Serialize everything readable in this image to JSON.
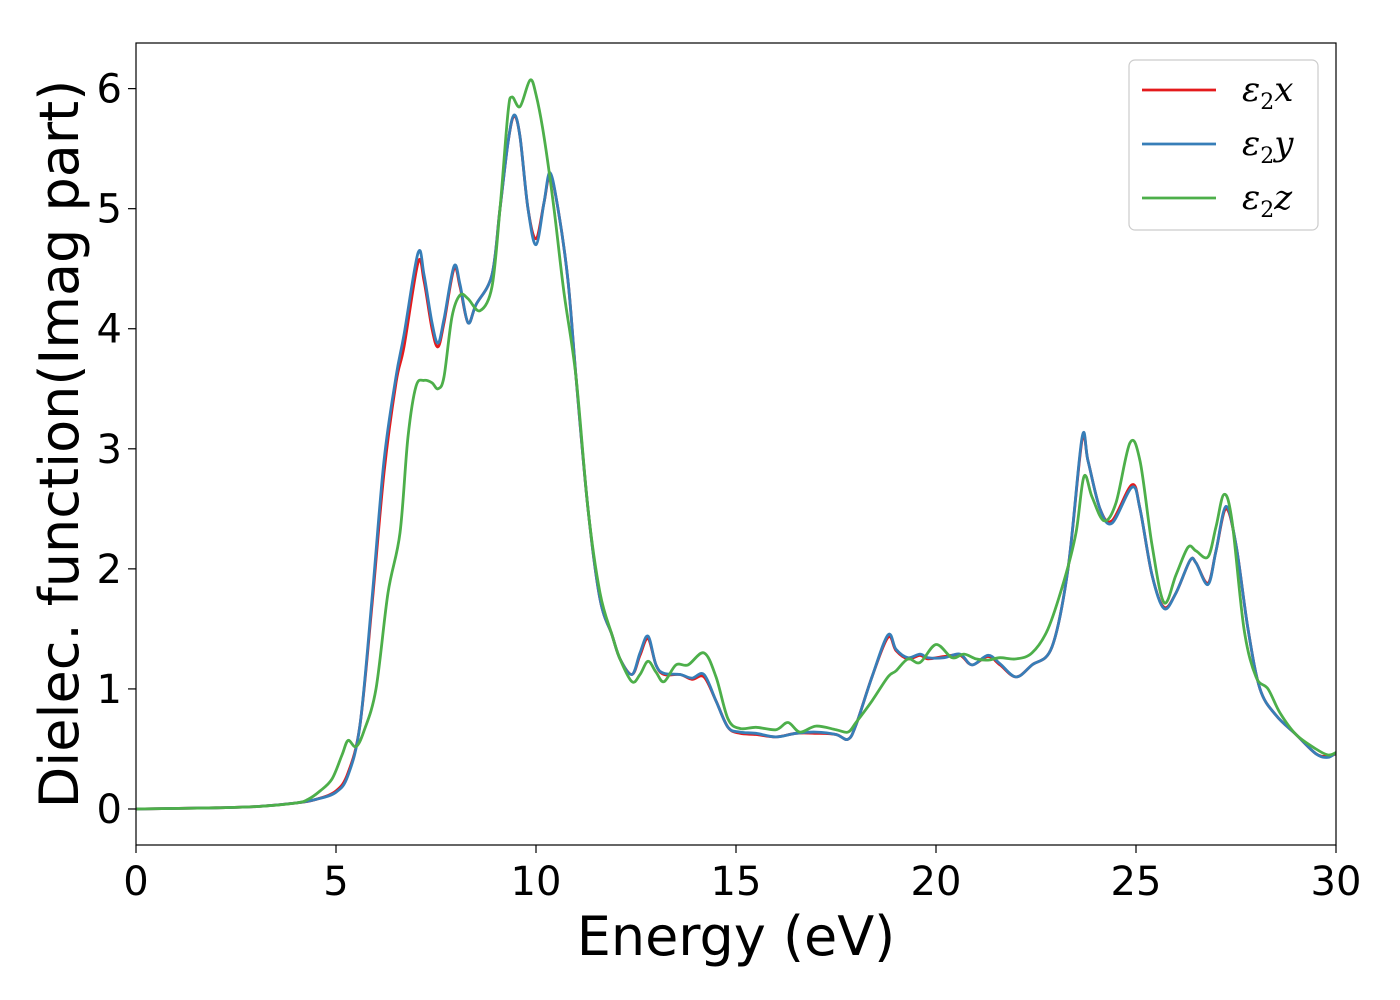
{
  "chart_data": {
    "type": "line",
    "xlabel": "Energy (eV)",
    "ylabel": "Dielec. function(Imag part)",
    "xlim": [
      0,
      30
    ],
    "ylim": [
      -0.3,
      6.38
    ],
    "xticks": [
      "0",
      "5",
      "10",
      "15",
      "20",
      "25",
      "30"
    ],
    "yticks": [
      "0",
      "1",
      "2",
      "3",
      "4",
      "5",
      "6"
    ],
    "grid": false,
    "legend_position": "top-right",
    "series": [
      {
        "name": "ε2x",
        "legend_base": "ε",
        "legend_sub": "2",
        "legend_var": "x",
        "color": "#e41a1c",
        "points": [
          [
            0,
            0
          ],
          [
            2,
            0.01
          ],
          [
            3,
            0.02
          ],
          [
            4,
            0.05
          ],
          [
            4.5,
            0.08
          ],
          [
            5,
            0.15
          ],
          [
            5.3,
            0.3
          ],
          [
            5.6,
            0.7
          ],
          [
            5.9,
            1.7
          ],
          [
            6.2,
            2.8
          ],
          [
            6.5,
            3.55
          ],
          [
            6.7,
            3.85
          ],
          [
            7.05,
            4.55
          ],
          [
            7.2,
            4.4
          ],
          [
            7.4,
            4.0
          ],
          [
            7.55,
            3.85
          ],
          [
            7.7,
            4.05
          ],
          [
            7.95,
            4.5
          ],
          [
            8.1,
            4.35
          ],
          [
            8.3,
            4.05
          ],
          [
            8.5,
            4.2
          ],
          [
            8.9,
            4.45
          ],
          [
            9.1,
            5.0
          ],
          [
            9.3,
            5.55
          ],
          [
            9.45,
            5.77
          ],
          [
            9.6,
            5.6
          ],
          [
            9.8,
            5.0
          ],
          [
            10.0,
            4.75
          ],
          [
            10.2,
            5.05
          ],
          [
            10.35,
            5.28
          ],
          [
            10.55,
            5.0
          ],
          [
            10.8,
            4.4
          ],
          [
            11.0,
            3.6
          ],
          [
            11.3,
            2.5
          ],
          [
            11.6,
            1.75
          ],
          [
            11.9,
            1.45
          ],
          [
            12.1,
            1.25
          ],
          [
            12.4,
            1.12
          ],
          [
            12.6,
            1.28
          ],
          [
            12.8,
            1.42
          ],
          [
            13.0,
            1.2
          ],
          [
            13.2,
            1.12
          ],
          [
            13.6,
            1.12
          ],
          [
            13.9,
            1.08
          ],
          [
            14.2,
            1.1
          ],
          [
            14.5,
            0.9
          ],
          [
            14.8,
            0.68
          ],
          [
            15.1,
            0.63
          ],
          [
            15.5,
            0.62
          ],
          [
            16.0,
            0.6
          ],
          [
            16.5,
            0.63
          ],
          [
            17.0,
            0.63
          ],
          [
            17.5,
            0.62
          ],
          [
            17.8,
            0.58
          ],
          [
            18.0,
            0.7
          ],
          [
            18.4,
            1.1
          ],
          [
            18.8,
            1.43
          ],
          [
            19.0,
            1.32
          ],
          [
            19.3,
            1.25
          ],
          [
            19.6,
            1.28
          ],
          [
            19.8,
            1.25
          ],
          [
            20.2,
            1.27
          ],
          [
            20.6,
            1.28
          ],
          [
            20.9,
            1.2
          ],
          [
            21.3,
            1.27
          ],
          [
            21.6,
            1.2
          ],
          [
            22.0,
            1.1
          ],
          [
            22.4,
            1.2
          ],
          [
            22.9,
            1.35
          ],
          [
            23.3,
            2.0
          ],
          [
            23.65,
            3.07
          ],
          [
            23.8,
            2.9
          ],
          [
            24.1,
            2.5
          ],
          [
            24.4,
            2.4
          ],
          [
            24.9,
            2.7
          ],
          [
            25.1,
            2.5
          ],
          [
            25.4,
            1.95
          ],
          [
            25.7,
            1.68
          ],
          [
            26.0,
            1.8
          ],
          [
            26.35,
            2.07
          ],
          [
            26.5,
            2.05
          ],
          [
            26.8,
            1.88
          ],
          [
            27.0,
            2.15
          ],
          [
            27.25,
            2.5
          ],
          [
            27.5,
            2.2
          ],
          [
            27.8,
            1.5
          ],
          [
            28.1,
            1.0
          ],
          [
            28.5,
            0.78
          ],
          [
            29.0,
            0.62
          ],
          [
            29.5,
            0.46
          ],
          [
            29.8,
            0.44
          ],
          [
            30,
            0.46
          ]
        ]
      },
      {
        "name": "ε2y",
        "legend_base": "ε",
        "legend_sub": "2",
        "legend_var": "y",
        "color": "#377eb8",
        "points": [
          [
            0,
            0
          ],
          [
            2,
            0.01
          ],
          [
            3,
            0.02
          ],
          [
            4,
            0.05
          ],
          [
            4.5,
            0.08
          ],
          [
            5,
            0.14
          ],
          [
            5.3,
            0.28
          ],
          [
            5.6,
            0.7
          ],
          [
            5.9,
            1.75
          ],
          [
            6.2,
            2.9
          ],
          [
            6.5,
            3.6
          ],
          [
            6.7,
            3.95
          ],
          [
            7.05,
            4.63
          ],
          [
            7.2,
            4.45
          ],
          [
            7.4,
            4.05
          ],
          [
            7.55,
            3.88
          ],
          [
            7.7,
            4.08
          ],
          [
            7.95,
            4.52
          ],
          [
            8.1,
            4.37
          ],
          [
            8.3,
            4.05
          ],
          [
            8.5,
            4.2
          ],
          [
            8.9,
            4.45
          ],
          [
            9.1,
            5.0
          ],
          [
            9.3,
            5.55
          ],
          [
            9.45,
            5.78
          ],
          [
            9.6,
            5.6
          ],
          [
            9.8,
            5.0
          ],
          [
            10.0,
            4.7
          ],
          [
            10.2,
            5.05
          ],
          [
            10.35,
            5.3
          ],
          [
            10.55,
            5.0
          ],
          [
            10.8,
            4.4
          ],
          [
            11.0,
            3.6
          ],
          [
            11.3,
            2.5
          ],
          [
            11.6,
            1.75
          ],
          [
            11.9,
            1.45
          ],
          [
            12.1,
            1.25
          ],
          [
            12.4,
            1.12
          ],
          [
            12.6,
            1.3
          ],
          [
            12.8,
            1.44
          ],
          [
            13.0,
            1.2
          ],
          [
            13.2,
            1.13
          ],
          [
            13.6,
            1.12
          ],
          [
            13.9,
            1.09
          ],
          [
            14.2,
            1.12
          ],
          [
            14.5,
            0.9
          ],
          [
            14.8,
            0.68
          ],
          [
            15.1,
            0.64
          ],
          [
            15.5,
            0.63
          ],
          [
            16.0,
            0.6
          ],
          [
            16.5,
            0.63
          ],
          [
            17.0,
            0.64
          ],
          [
            17.5,
            0.62
          ],
          [
            17.8,
            0.58
          ],
          [
            18.0,
            0.7
          ],
          [
            18.4,
            1.1
          ],
          [
            18.8,
            1.45
          ],
          [
            19.0,
            1.33
          ],
          [
            19.3,
            1.26
          ],
          [
            19.6,
            1.29
          ],
          [
            19.8,
            1.26
          ],
          [
            20.2,
            1.26
          ],
          [
            20.6,
            1.29
          ],
          [
            20.9,
            1.2
          ],
          [
            21.3,
            1.28
          ],
          [
            21.6,
            1.21
          ],
          [
            22.0,
            1.1
          ],
          [
            22.4,
            1.2
          ],
          [
            22.9,
            1.35
          ],
          [
            23.3,
            2.0
          ],
          [
            23.65,
            3.09
          ],
          [
            23.8,
            2.9
          ],
          [
            24.1,
            2.5
          ],
          [
            24.4,
            2.38
          ],
          [
            24.9,
            2.68
          ],
          [
            25.1,
            2.5
          ],
          [
            25.4,
            1.95
          ],
          [
            25.7,
            1.67
          ],
          [
            26.0,
            1.8
          ],
          [
            26.35,
            2.07
          ],
          [
            26.5,
            2.05
          ],
          [
            26.8,
            1.87
          ],
          [
            27.0,
            2.15
          ],
          [
            27.25,
            2.52
          ],
          [
            27.5,
            2.2
          ],
          [
            27.8,
            1.5
          ],
          [
            28.1,
            1.0
          ],
          [
            28.5,
            0.78
          ],
          [
            29.0,
            0.62
          ],
          [
            29.5,
            0.46
          ],
          [
            29.8,
            0.43
          ],
          [
            30,
            0.47
          ]
        ]
      },
      {
        "name": "ε2z",
        "legend_base": "ε",
        "legend_sub": "2",
        "legend_var": "z",
        "color": "#4daf4a",
        "points": [
          [
            0,
            0
          ],
          [
            2,
            0.01
          ],
          [
            3,
            0.02
          ],
          [
            4,
            0.05
          ],
          [
            4.3,
            0.08
          ],
          [
            4.6,
            0.15
          ],
          [
            4.9,
            0.25
          ],
          [
            5.15,
            0.45
          ],
          [
            5.3,
            0.57
          ],
          [
            5.5,
            0.52
          ],
          [
            5.7,
            0.65
          ],
          [
            6.0,
            1.0
          ],
          [
            6.3,
            1.8
          ],
          [
            6.6,
            2.3
          ],
          [
            6.8,
            3.1
          ],
          [
            7.0,
            3.52
          ],
          [
            7.2,
            3.57
          ],
          [
            7.4,
            3.55
          ],
          [
            7.55,
            3.5
          ],
          [
            7.7,
            3.6
          ],
          [
            7.9,
            4.1
          ],
          [
            8.1,
            4.28
          ],
          [
            8.3,
            4.25
          ],
          [
            8.6,
            4.15
          ],
          [
            8.9,
            4.35
          ],
          [
            9.1,
            5.0
          ],
          [
            9.3,
            5.8
          ],
          [
            9.4,
            5.93
          ],
          [
            9.6,
            5.85
          ],
          [
            9.85,
            6.07
          ],
          [
            10.0,
            5.95
          ],
          [
            10.2,
            5.6
          ],
          [
            10.45,
            5.0
          ],
          [
            10.7,
            4.3
          ],
          [
            11.0,
            3.6
          ],
          [
            11.3,
            2.5
          ],
          [
            11.6,
            1.8
          ],
          [
            11.9,
            1.45
          ],
          [
            12.1,
            1.25
          ],
          [
            12.4,
            1.06
          ],
          [
            12.6,
            1.12
          ],
          [
            12.8,
            1.23
          ],
          [
            13.0,
            1.14
          ],
          [
            13.2,
            1.06
          ],
          [
            13.5,
            1.2
          ],
          [
            13.8,
            1.2
          ],
          [
            14.2,
            1.3
          ],
          [
            14.5,
            1.1
          ],
          [
            14.8,
            0.75
          ],
          [
            15.1,
            0.67
          ],
          [
            15.5,
            0.68
          ],
          [
            16.0,
            0.66
          ],
          [
            16.3,
            0.72
          ],
          [
            16.6,
            0.64
          ],
          [
            17.0,
            0.69
          ],
          [
            17.5,
            0.66
          ],
          [
            17.8,
            0.64
          ],
          [
            18.0,
            0.72
          ],
          [
            18.4,
            0.9
          ],
          [
            18.8,
            1.1
          ],
          [
            19.0,
            1.15
          ],
          [
            19.3,
            1.25
          ],
          [
            19.6,
            1.22
          ],
          [
            20.0,
            1.37
          ],
          [
            20.4,
            1.26
          ],
          [
            20.7,
            1.29
          ],
          [
            21.0,
            1.25
          ],
          [
            21.3,
            1.24
          ],
          [
            21.6,
            1.26
          ],
          [
            22.0,
            1.25
          ],
          [
            22.4,
            1.3
          ],
          [
            22.8,
            1.5
          ],
          [
            23.2,
            1.9
          ],
          [
            23.5,
            2.3
          ],
          [
            23.7,
            2.77
          ],
          [
            23.9,
            2.6
          ],
          [
            24.2,
            2.4
          ],
          [
            24.5,
            2.55
          ],
          [
            24.85,
            3.05
          ],
          [
            25.1,
            2.9
          ],
          [
            25.4,
            2.2
          ],
          [
            25.7,
            1.72
          ],
          [
            26.0,
            1.95
          ],
          [
            26.3,
            2.18
          ],
          [
            26.5,
            2.15
          ],
          [
            26.8,
            2.1
          ],
          [
            27.0,
            2.35
          ],
          [
            27.2,
            2.62
          ],
          [
            27.4,
            2.4
          ],
          [
            27.7,
            1.5
          ],
          [
            28.0,
            1.1
          ],
          [
            28.3,
            1.0
          ],
          [
            28.6,
            0.8
          ],
          [
            29.0,
            0.62
          ],
          [
            29.5,
            0.5
          ],
          [
            29.8,
            0.45
          ],
          [
            30,
            0.47
          ]
        ]
      }
    ]
  }
}
